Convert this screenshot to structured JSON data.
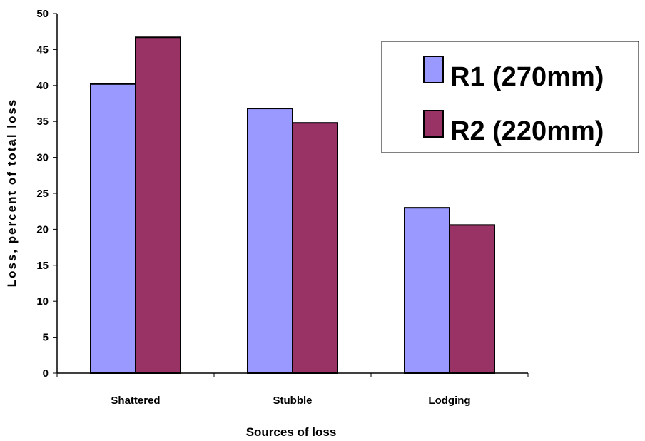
{
  "chart_data": {
    "type": "bar",
    "title": "",
    "xlabel": "Sources of loss",
    "ylabel": "Loss, percent of total loss",
    "categories": [
      "Shattered",
      "Stubble",
      "Lodging"
    ],
    "series": [
      {
        "name": "R1 (270mm)",
        "values": [
          40.2,
          36.8,
          23.0
        ],
        "color": "#9999ff"
      },
      {
        "name": "R2 (220mm)",
        "values": [
          46.7,
          34.8,
          20.6
        ],
        "color": "#993366"
      }
    ],
    "ylim": [
      0,
      50
    ],
    "yticks": [
      "0",
      "5",
      "10",
      "15",
      "20",
      "25",
      "30",
      "35",
      "40",
      "45",
      "50"
    ],
    "grid": false,
    "legend_position": "top-right"
  }
}
